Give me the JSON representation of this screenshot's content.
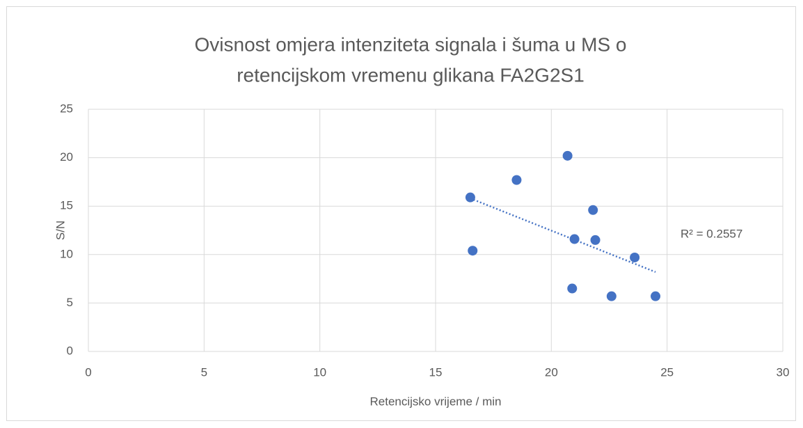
{
  "chart_data": {
    "type": "scatter",
    "title": [
      "Ovisnost omjera intenziteta signala i šuma u MS o",
      "retencijskom vremenu glikana FA2G2S1"
    ],
    "x_label": "Retencijsko vrijeme / min",
    "y_label": "S/N",
    "series": [
      {
        "name": "S/N",
        "color": "#4472c4",
        "x": [
          20.7,
          18.5,
          16.5,
          16.6,
          21.8,
          21.0,
          21.9,
          23.6,
          20.9,
          22.6,
          24.5
        ],
        "values": [
          20.2,
          17.7,
          15.9,
          10.4,
          14.6,
          11.6,
          11.5,
          9.7,
          6.5,
          5.7,
          5.7
        ]
      }
    ],
    "trendline": {
      "x": [
        16.5,
        24.5
      ],
      "values": [
        15.8,
        8.2
      ],
      "color": "#4472c4",
      "label": "R² = 0.2557"
    },
    "xlim": [
      0,
      30
    ],
    "xticks": [
      0,
      5,
      10,
      15,
      20,
      25,
      30
    ],
    "ylim": [
      0,
      25
    ],
    "yticks": [
      0,
      5,
      10,
      15,
      20,
      25
    ],
    "grid": true
  }
}
